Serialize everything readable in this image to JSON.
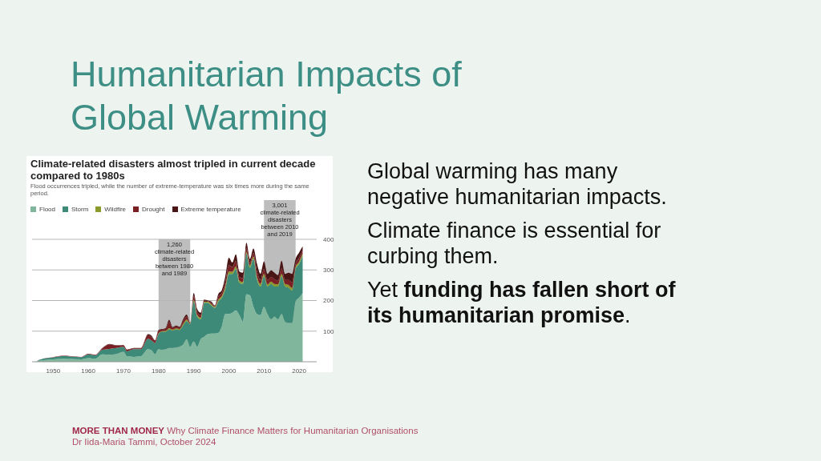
{
  "chart_data": {
    "type": "area",
    "stacked": true,
    "title": "Climate-related disasters almost tripled in current decade compared to 1980s",
    "subtitle": "Flood occurrences tripled, while the number of extreme-temperature was six times more during the same period.",
    "x": [
      1945,
      1947,
      1950,
      1953,
      1955,
      1958,
      1960,
      1962,
      1964,
      1966,
      1968,
      1970,
      1971,
      1973,
      1975,
      1977,
      1978,
      1979,
      1980,
      1981,
      1982,
      1983,
      1984,
      1985,
      1986,
      1987,
      1988,
      1989,
      1990,
      1991,
      1992,
      1993,
      1994,
      1995,
      1996,
      1997,
      1998,
      1999,
      2000,
      2001,
      2002,
      2003,
      2004,
      2005,
      2006,
      2007,
      2008,
      2009,
      2010,
      2011,
      2012,
      2013,
      2014,
      2015,
      2016,
      2017,
      2018,
      2019,
      2020,
      2021
    ],
    "series": [
      {
        "name": "Flood",
        "color": "#7fb69c",
        "values": [
          0,
          5,
          8,
          10,
          9,
          8,
          12,
          10,
          24,
          23,
          25,
          33,
          18,
          16,
          18,
          41,
          37,
          24,
          41,
          39,
          41,
          45,
          45,
          47,
          50,
          57,
          74,
          49,
          66,
          49,
          74,
          82,
          90,
          92,
          92,
          94,
          115,
          156,
          156,
          160,
          168,
          152,
          131,
          221,
          217,
          180,
          156,
          152,
          180,
          156,
          139,
          148,
          139,
          156,
          131,
          127,
          127,
          197,
          209,
          225
        ]
      },
      {
        "name": "Storm",
        "color": "#3d8a78",
        "values": [
          0,
          5,
          6,
          9,
          8,
          7,
          12,
          11,
          15,
          19,
          20,
          16,
          16,
          25,
          23,
          34,
          32,
          37,
          50,
          59,
          57,
          61,
          57,
          59,
          54,
          62,
          59,
          74,
          131,
          99,
          65,
          111,
          103,
          92,
          84,
          103,
          94,
          82,
          131,
          127,
          135,
          106,
          123,
          131,
          90,
          156,
          114,
          94,
          99,
          90,
          115,
          98,
          107,
          123,
          115,
          115,
          106,
          106,
          111,
          123
        ]
      },
      {
        "name": "Wildfire",
        "color": "#8c9a2c",
        "values": [
          0,
          0,
          0,
          0,
          0,
          0,
          0,
          0,
          0,
          0,
          0,
          0,
          0,
          0,
          0,
          0,
          0,
          0,
          2,
          2,
          3,
          4,
          3,
          4,
          3,
          5,
          5,
          1,
          5,
          5,
          5,
          3,
          3,
          4,
          3,
          6,
          6,
          8,
          8,
          7,
          8,
          7,
          7,
          7,
          7,
          7,
          8,
          8,
          8,
          7,
          8,
          8,
          7,
          8,
          8,
          9,
          8,
          7,
          7,
          6
        ]
      },
      {
        "name": "Drought",
        "color": "#7a1f24",
        "values": [
          0,
          0,
          1,
          1,
          1,
          1,
          2,
          2,
          5,
          14,
          8,
          5,
          5,
          3,
          3,
          12,
          12,
          6,
          8,
          5,
          6,
          20,
          6,
          6,
          5,
          10,
          10,
          2,
          13,
          10,
          8,
          4,
          2,
          5,
          3,
          10,
          10,
          15,
          20,
          15,
          18,
          12,
          12,
          12,
          10,
          12,
          18,
          13,
          16,
          14,
          15,
          15,
          12,
          18,
          13,
          16,
          18,
          10,
          12,
          10
        ]
      },
      {
        "name": "Extreme temperature",
        "color": "#4a1515",
        "values": [
          0,
          0,
          0,
          0,
          0,
          0,
          0,
          0,
          1,
          2,
          1,
          1,
          1,
          1,
          1,
          3,
          4,
          3,
          3,
          2,
          3,
          7,
          2,
          2,
          2,
          5,
          6,
          1,
          10,
          9,
          8,
          3,
          2,
          4,
          2,
          8,
          9,
          18,
          25,
          15,
          22,
          18,
          18,
          18,
          12,
          15,
          24,
          20,
          25,
          20,
          22,
          22,
          18,
          25,
          20,
          24,
          28,
          16,
          18,
          13
        ]
      }
    ],
    "xlim": [
      1944,
      2025
    ],
    "xticks": [
      1950,
      1960,
      1970,
      1980,
      1990,
      2000,
      2010,
      2020
    ],
    "ylim": [
      0,
      400
    ],
    "yticks": [
      100,
      200,
      300,
      400
    ],
    "grid": "y",
    "legend": "top",
    "bands": [
      {
        "axis": "x",
        "from": 1980,
        "to": 1989,
        "label": "1,260 climate-related disasters between 1980 and 1989",
        "color": "#bdbdbd"
      },
      {
        "axis": "x",
        "from": 2010,
        "to": 2019,
        "label": "3,001 climate-related disasters between 2010 and 2019",
        "color": "#bdbdbd"
      }
    ],
    "annotations": [
      "Humanitarian Impacts of Global Warming",
      "Global warming has many negative humanitarian impacts.",
      "Climate finance is essential for curbing them.",
      "Yet",
      "funding has fallen short of its humanitarian promise",
      ".",
      "MORE THAN MONEY",
      "Why Climate Finance Matters for Humanitarian Organisations",
      "Dr Iida-Maria Tammi, October 2024"
    ]
  }
}
